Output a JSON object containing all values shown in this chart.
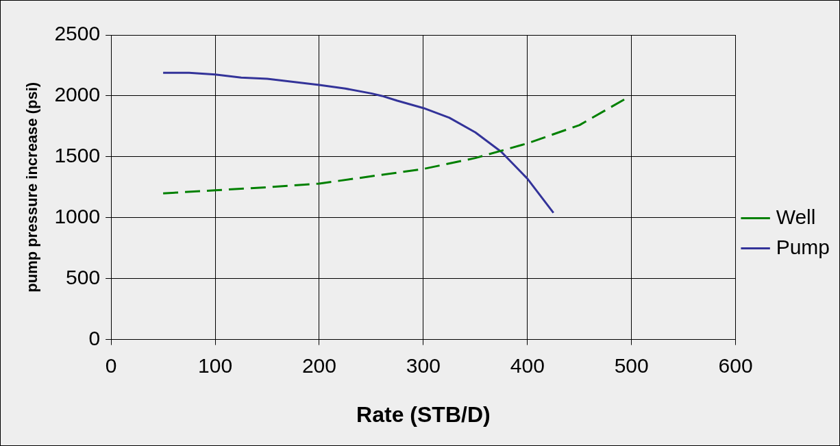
{
  "chart_data": {
    "type": "line",
    "xlabel": "Rate (STB/D)",
    "ylabel": "pump pressure increase (psi)",
    "xlim": [
      0,
      600
    ],
    "xticks": [
      0,
      100,
      200,
      300,
      400,
      500,
      600
    ],
    "ylim": [
      0,
      2500
    ],
    "yticks": [
      0,
      500,
      1000,
      1500,
      2000,
      2500
    ],
    "grid": true,
    "legend": "right",
    "marker": "none",
    "series": [
      {
        "name": "Well",
        "color": "#008000",
        "line_style": "dashed",
        "x": [
          50,
          100,
          150,
          200,
          250,
          300,
          350,
          400,
          450,
          495
        ],
        "values": [
          1200,
          1225,
          1250,
          1280,
          1340,
          1400,
          1490,
          1610,
          1760,
          1980
        ]
      },
      {
        "name": "Pump",
        "color": "#333399",
        "line_style": "solid",
        "x": [
          50,
          75,
          100,
          125,
          150,
          175,
          200,
          225,
          250,
          260,
          275,
          300,
          325,
          350,
          375,
          400,
          425
        ],
        "values": [
          2190,
          2190,
          2175,
          2150,
          2140,
          2115,
          2090,
          2060,
          2020,
          2000,
          1960,
          1900,
          1820,
          1700,
          1540,
          1320,
          1040
        ]
      }
    ]
  }
}
